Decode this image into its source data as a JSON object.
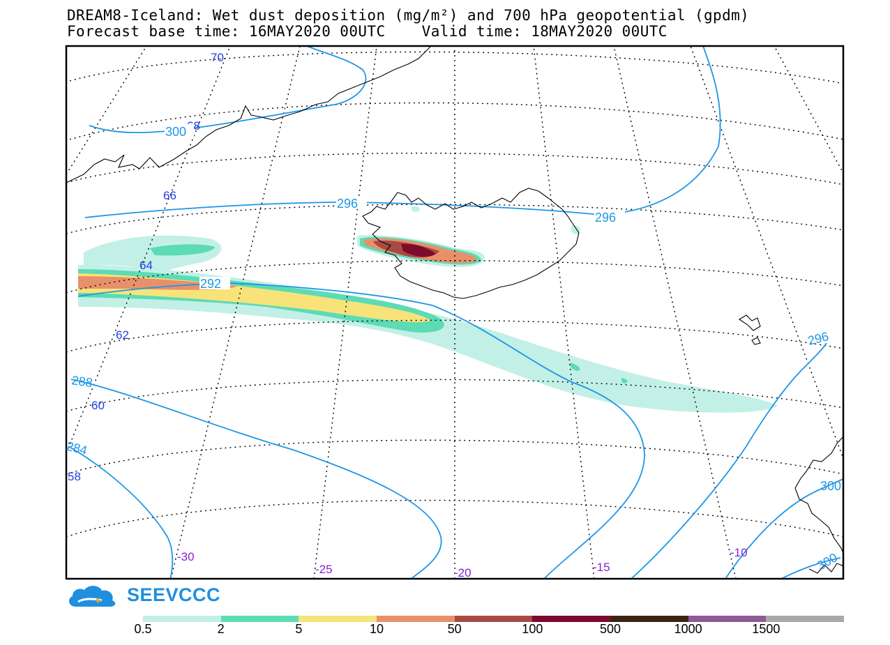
{
  "title": {
    "line1": "DREAM8-Iceland: Wet dust deposition (mg/m²) and 700 hPa geopotential (gpdm)",
    "line2": "Forecast base time: 16MAY2020 00UTC    Valid time: 18MAY2020 00UTC"
  },
  "map": {
    "lat_labels": [
      "70",
      "68",
      "66",
      "64",
      "62",
      "60",
      "58"
    ],
    "lon_labels": [
      "-30",
      "-25",
      "-20",
      "-15",
      "-10"
    ],
    "contour_labels": [
      "300",
      "296",
      "296",
      "292",
      "288",
      "284",
      "296",
      "300",
      "300"
    ],
    "colors": {
      "latitude_label": "#1f3fe0",
      "longitude_label": "#8a1fd0",
      "contour": "#1e96e6",
      "coast": "#000000"
    }
  },
  "logo": {
    "text": "SEEVCCC",
    "icon": "cloud-logo-icon"
  },
  "legend": {
    "ticks": [
      "0.5",
      "2",
      "5",
      "10",
      "50",
      "100",
      "500",
      "1000",
      "1500"
    ],
    "colors": [
      "#c2f0e6",
      "#5cdbb4",
      "#f7e37a",
      "#e8906a",
      "#a84a44",
      "#7e0b2e",
      "#3e2416",
      "#8c5a96",
      "#a8a8a8"
    ]
  }
}
